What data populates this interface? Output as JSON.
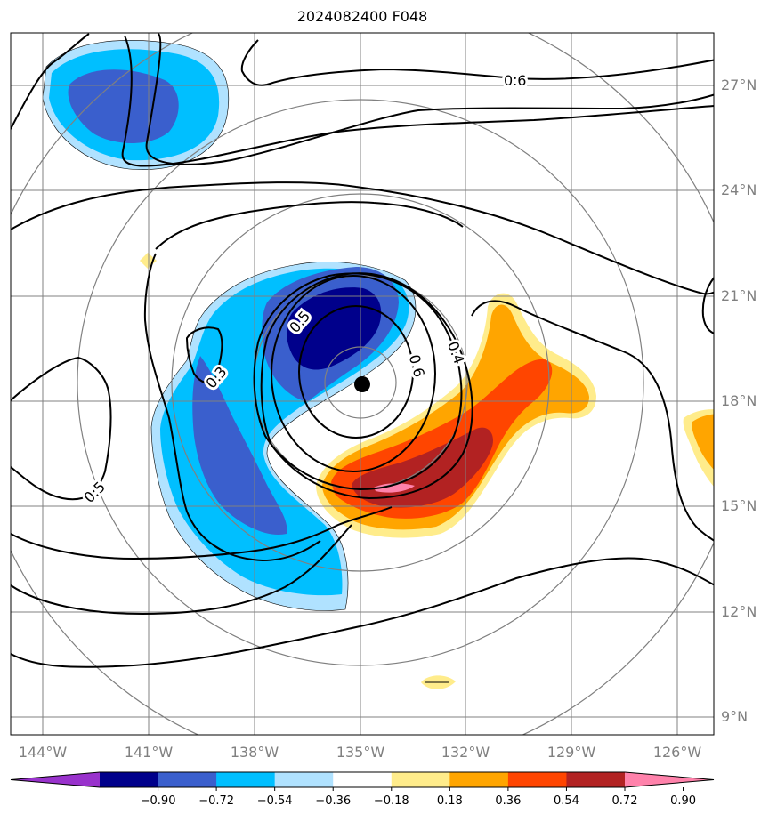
{
  "title": "2024082400 F048",
  "chart_data": {
    "type": "map-contour",
    "title": "2024082400 F048",
    "longitude_ticks": [
      "144°W",
      "141°W",
      "138°W",
      "135°W",
      "132°W",
      "129°W",
      "126°W"
    ],
    "latitude_ticks": [
      "27°N",
      "24°N",
      "21°N",
      "18°N",
      "15°N",
      "12°N",
      "9°N"
    ],
    "extent": {
      "lon": [
        -145,
        -125
      ],
      "lat": [
        8.5,
        28.5
      ]
    },
    "center_marker": {
      "lon": -135.0,
      "lat": 18.4
    },
    "range_rings_deg": [
      1,
      3,
      5,
      7
    ],
    "colorbar": {
      "levels": [
        -0.9,
        -0.72,
        -0.54,
        -0.36,
        -0.18,
        0.18,
        0.36,
        0.54,
        0.72,
        0.9
      ],
      "tick_labels": [
        "−0.90",
        "−0.72",
        "−0.54",
        "−0.36",
        "−0.18",
        "0.18",
        "0.36",
        "0.54",
        "0.72",
        "0.90"
      ],
      "colors": [
        "#9932cc",
        "#00008b",
        "#3a5fcd",
        "#00bfff",
        "#b0e2ff",
        "#ffffff",
        "#ffec8b",
        "#ffa500",
        "#ff4500",
        "#b22222",
        "#ff82ab"
      ],
      "extend": "both"
    },
    "contour_labels": [
      {
        "text": "0.6",
        "lon": -130.5,
        "lat": 27.2
      },
      {
        "text": "0.5",
        "lon": -136.3,
        "lat": 20.5
      },
      {
        "text": "0.3",
        "lon": -139.0,
        "lat": 19.2
      },
      {
        "text": "0.4",
        "lon": -132.3,
        "lat": 19.5
      },
      {
        "text": "0.6",
        "lon": -133.4,
        "lat": 18.9
      },
      {
        "text": "0.5",
        "lon": -142.5,
        "lat": 15.5
      }
    ],
    "grid": true
  }
}
